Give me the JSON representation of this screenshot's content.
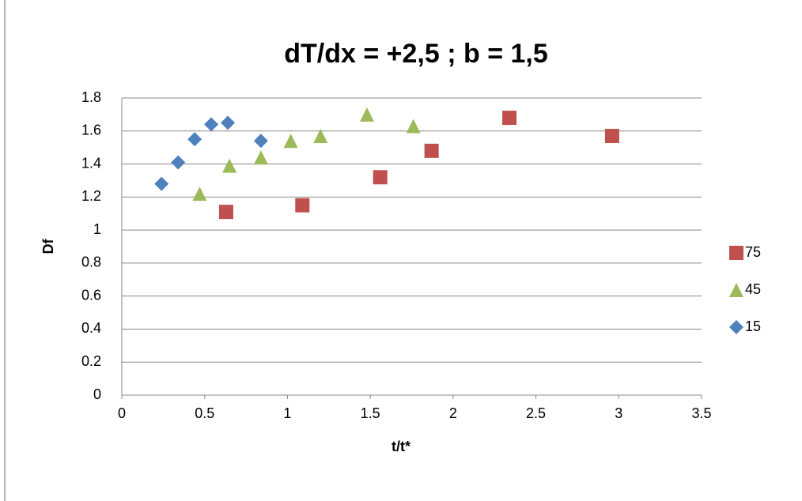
{
  "chart_data": {
    "type": "scatter",
    "title": "dT/dx = +2,5 ; b = 1,5",
    "x_label": "t/t*",
    "y_label": "Df",
    "xlim": [
      0,
      3.5
    ],
    "xticks": [
      0,
      0.5,
      1,
      1.5,
      2,
      2.5,
      3,
      3.5
    ],
    "ylim": [
      0,
      1.8
    ],
    "yticks": [
      0,
      0.2,
      0.4,
      0.6,
      0.8,
      1,
      1.2,
      1.4,
      1.6,
      1.8
    ],
    "grid": true,
    "legend": "right",
    "series": [
      {
        "name": "75",
        "color": "#c0504d",
        "marker": "square",
        "x": [
          0.63,
          1.09,
          1.56,
          1.87,
          2.34,
          2.96
        ],
        "values": [
          1.11,
          1.15,
          1.32,
          1.48,
          1.68,
          1.57
        ]
      },
      {
        "name": "45",
        "color": "#9bbb59",
        "marker": "triangle",
        "x": [
          0.47,
          0.65,
          0.84,
          1.02,
          1.2,
          1.48,
          1.76
        ],
        "values": [
          1.22,
          1.39,
          1.44,
          1.54,
          1.57,
          1.7,
          1.63
        ]
      },
      {
        "name": "15",
        "color": "#4f81bd",
        "marker": "diamond",
        "x": [
          0.24,
          0.34,
          0.44,
          0.54,
          0.64,
          0.84
        ],
        "values": [
          1.28,
          1.41,
          1.55,
          1.64,
          1.65,
          1.54
        ]
      }
    ]
  }
}
